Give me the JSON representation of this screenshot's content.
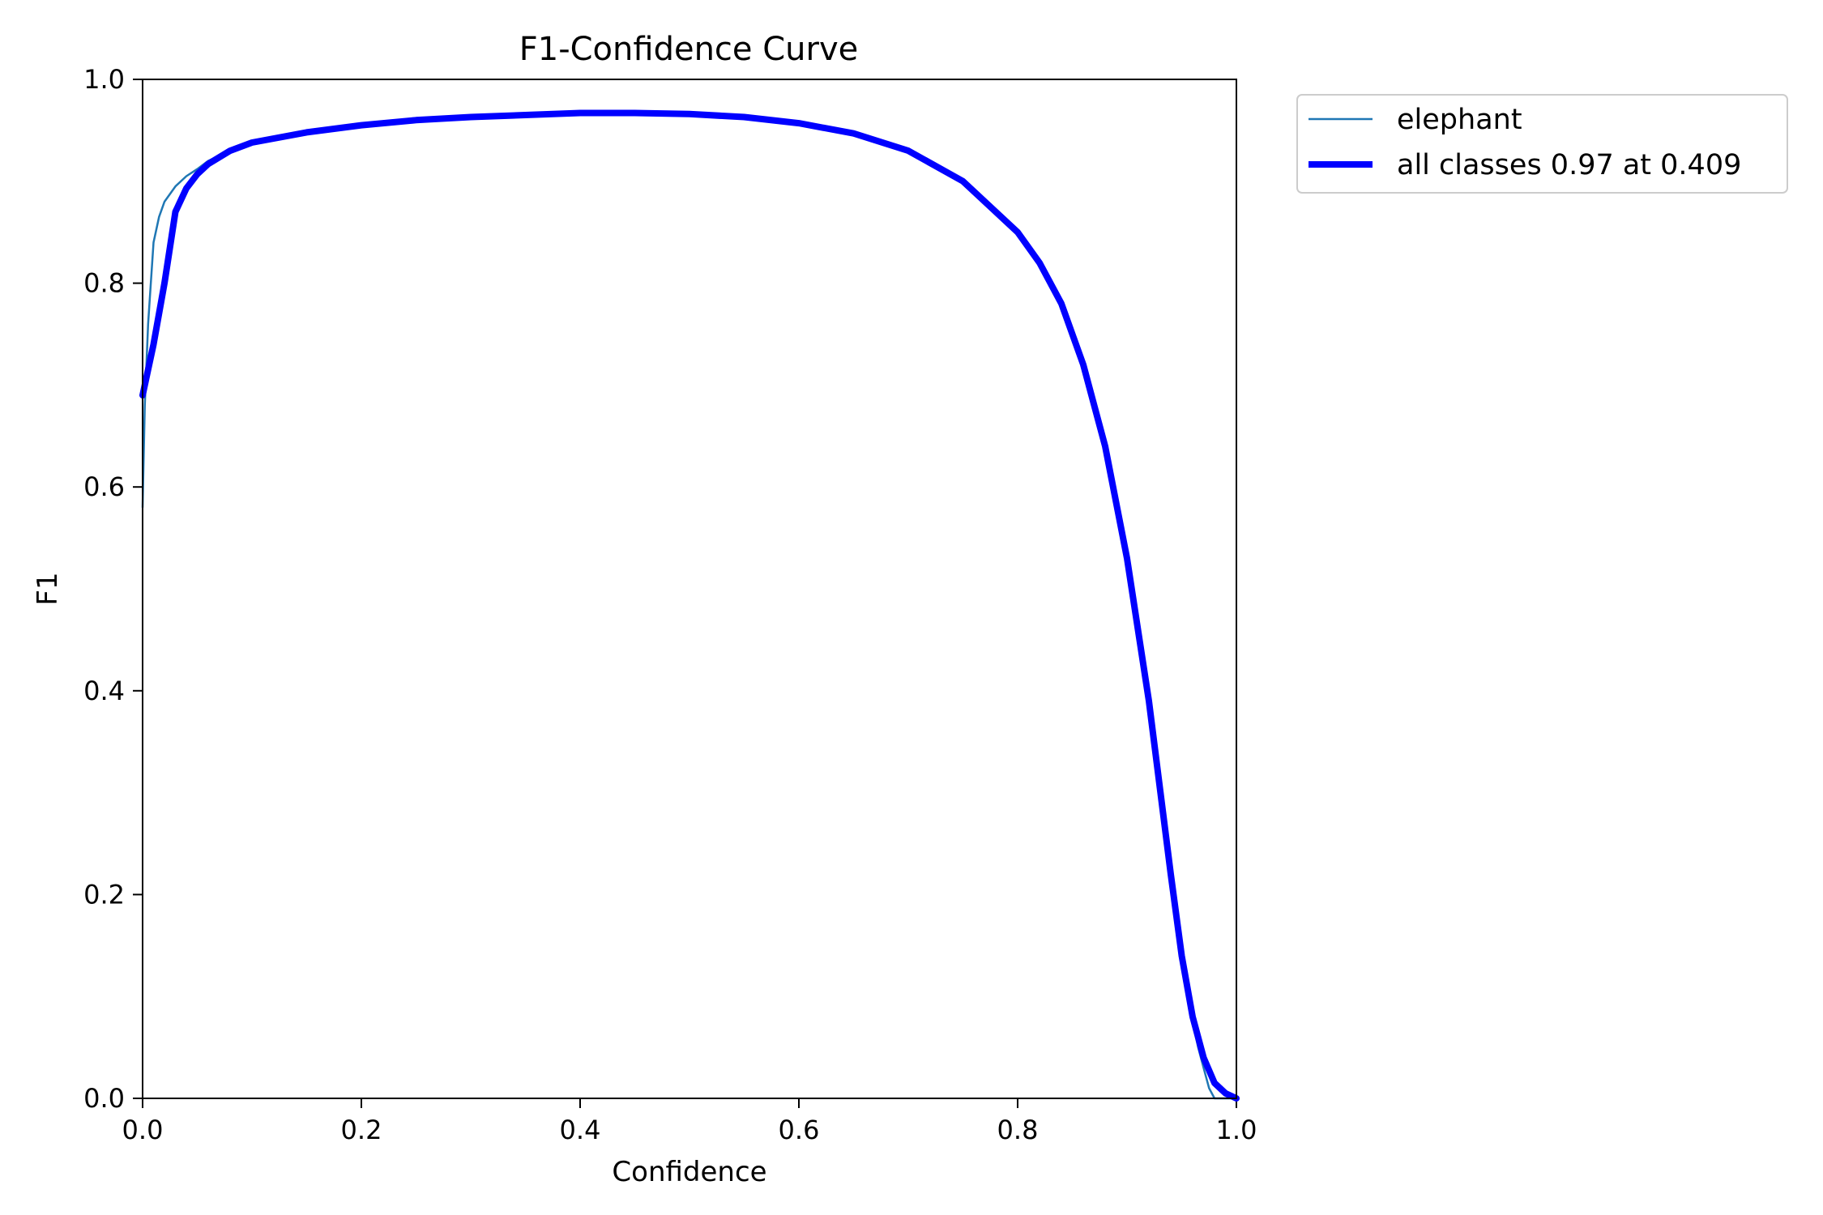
{
  "chart_data": {
    "type": "line",
    "title": "F1-Confidence Curve",
    "xlabel": "Confidence",
    "ylabel": "F1",
    "xlim": [
      0.0,
      1.0
    ],
    "ylim": [
      0.0,
      1.0
    ],
    "xticks": [
      "0.0",
      "0.2",
      "0.4",
      "0.6",
      "0.8",
      "1.0"
    ],
    "yticks": [
      "0.0",
      "0.2",
      "0.4",
      "0.6",
      "0.8",
      "1.0"
    ],
    "grid": false,
    "legend_position": "outside-top-right",
    "series": [
      {
        "name": "elephant",
        "color": "#1f77b4",
        "x": [
          0.0,
          0.002,
          0.005,
          0.01,
          0.015,
          0.02,
          0.03,
          0.04,
          0.05,
          0.06,
          0.08,
          0.1,
          0.15,
          0.2,
          0.25,
          0.3,
          0.35,
          0.4,
          0.45,
          0.5,
          0.55,
          0.6,
          0.65,
          0.7,
          0.75,
          0.8,
          0.82,
          0.84,
          0.86,
          0.88,
          0.9,
          0.92,
          0.94,
          0.95,
          0.96,
          0.965,
          0.97,
          0.975,
          0.98,
          0.99,
          1.0
        ],
        "y": [
          0.58,
          0.68,
          0.76,
          0.84,
          0.865,
          0.88,
          0.895,
          0.905,
          0.912,
          0.92,
          0.93,
          0.938,
          0.948,
          0.955,
          0.96,
          0.963,
          0.965,
          0.967,
          0.967,
          0.966,
          0.963,
          0.957,
          0.947,
          0.93,
          0.9,
          0.85,
          0.82,
          0.78,
          0.72,
          0.64,
          0.53,
          0.39,
          0.22,
          0.14,
          0.075,
          0.05,
          0.03,
          0.01,
          0.0,
          0.0,
          0.0
        ]
      },
      {
        "name": "all classes 0.97 at 0.409",
        "color": "#0000ff",
        "x": [
          0.0,
          0.01,
          0.02,
          0.03,
          0.04,
          0.05,
          0.06,
          0.08,
          0.1,
          0.15,
          0.2,
          0.25,
          0.3,
          0.35,
          0.4,
          0.409,
          0.45,
          0.5,
          0.55,
          0.6,
          0.65,
          0.7,
          0.75,
          0.8,
          0.82,
          0.84,
          0.86,
          0.88,
          0.9,
          0.92,
          0.94,
          0.95,
          0.96,
          0.97,
          0.98,
          0.99,
          1.0
        ],
        "y": [
          0.69,
          0.74,
          0.8,
          0.87,
          0.893,
          0.907,
          0.917,
          0.93,
          0.938,
          0.948,
          0.955,
          0.96,
          0.963,
          0.965,
          0.967,
          0.967,
          0.967,
          0.966,
          0.963,
          0.957,
          0.947,
          0.93,
          0.9,
          0.85,
          0.82,
          0.78,
          0.72,
          0.64,
          0.53,
          0.39,
          0.22,
          0.14,
          0.08,
          0.04,
          0.015,
          0.005,
          0.0
        ]
      }
    ]
  }
}
